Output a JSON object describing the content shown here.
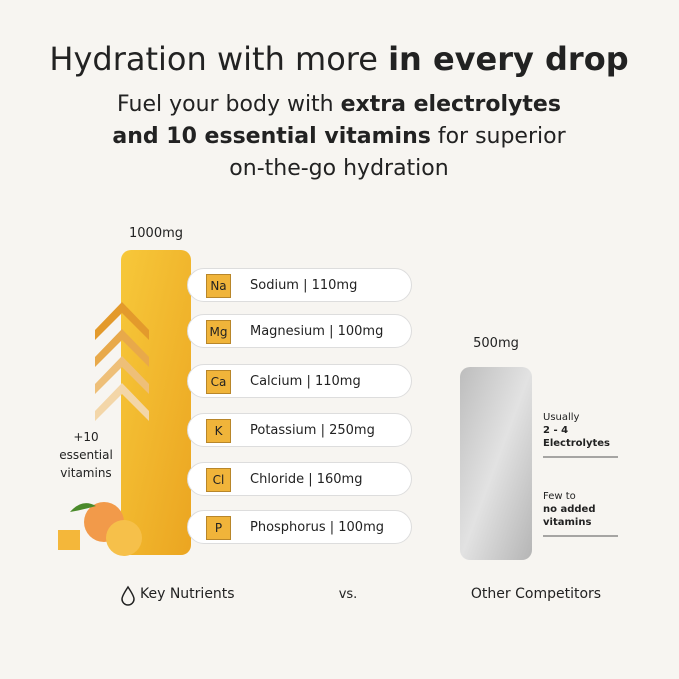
{
  "header": {
    "title": {
      "regular": "Hydration with more",
      "bold": "in every drop"
    },
    "subtitle": {
      "lines": [
        {
          "regular": "Fuel your body with",
          "bold": "extra electrolytes"
        },
        {
          "bold": "and 10 essential vitamins",
          "regular": "for superior"
        },
        {
          "regular": "on-the-go hydration"
        }
      ]
    }
  },
  "left": {
    "amount": "1000mg",
    "vitamins": [
      "+10",
      "essential",
      "vitamins"
    ],
    "nutrients": [
      {
        "symbol": "Na",
        "label": "Sodium | 110mg"
      },
      {
        "symbol": "Mg",
        "label": "Magnesium | 100mg"
      },
      {
        "symbol": "Ca",
        "label": "Calcium | 110mg"
      },
      {
        "symbol": "K",
        "label": "Potassium | 250mg"
      },
      {
        "symbol": "Cl",
        "label": "Chloride | 160mg"
      },
      {
        "symbol": "P",
        "label": "Phosphorus | 100mg"
      }
    ],
    "caption": "Key Nutrients"
  },
  "vs": "vs.",
  "right": {
    "amount": "500mg",
    "notes": [
      {
        "lines": [
          "Usually"
        ],
        "bold": [
          "2 - 4",
          "Electrolytes"
        ]
      },
      {
        "lines": [
          "Few to"
        ],
        "bold": [
          "no added",
          "vitamins"
        ]
      }
    ],
    "caption": "Other Competitors"
  }
}
